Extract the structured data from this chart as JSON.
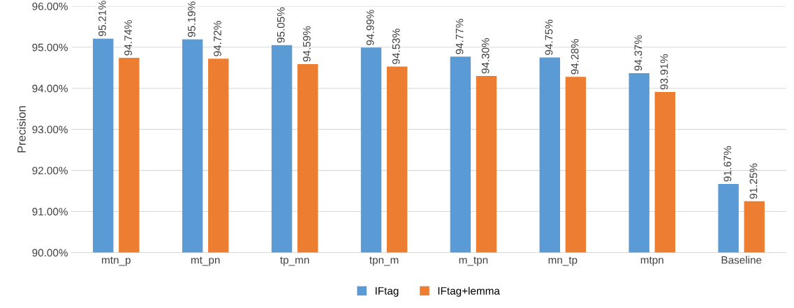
{
  "chart_data": {
    "type": "bar",
    "ylabel": "Precision",
    "categories": [
      "mtn_p",
      "mt_pn",
      "tp_mn",
      "tpn_m",
      "m_tpn",
      "mn_tp",
      "mtpn",
      "Baseline"
    ],
    "series": [
      {
        "name": "IFtag",
        "color": "#5b9bd5",
        "values": [
          95.21,
          95.19,
          95.05,
          94.99,
          94.77,
          94.75,
          94.37,
          91.67
        ],
        "value_labels": [
          "95.21%",
          "95.19%",
          "95.05%",
          "94.99%",
          "94.77%",
          "94.75%",
          "94.37%",
          "91.67%"
        ]
      },
      {
        "name": "IFtag+lemma",
        "color": "#ed7d31",
        "values": [
          94.74,
          94.72,
          94.59,
          94.53,
          94.3,
          94.28,
          93.91,
          91.25
        ],
        "value_labels": [
          "94.74%",
          "94.72%",
          "94.59%",
          "94.53%",
          "94.30%",
          "94.28%",
          "93.91%",
          "91.25%"
        ]
      }
    ],
    "ylim": [
      90,
      96
    ],
    "yticks": [
      {
        "value": 90,
        "label": "90.00%"
      },
      {
        "value": 91,
        "label": "91.00%"
      },
      {
        "value": 92,
        "label": "92.00%"
      },
      {
        "value": 93,
        "label": "93.00%"
      },
      {
        "value": 94,
        "label": "94.00%"
      },
      {
        "value": 95,
        "label": "95.00%"
      },
      {
        "value": 96,
        "label": "96.00%"
      }
    ],
    "grid": "y",
    "legend": "bottom"
  }
}
